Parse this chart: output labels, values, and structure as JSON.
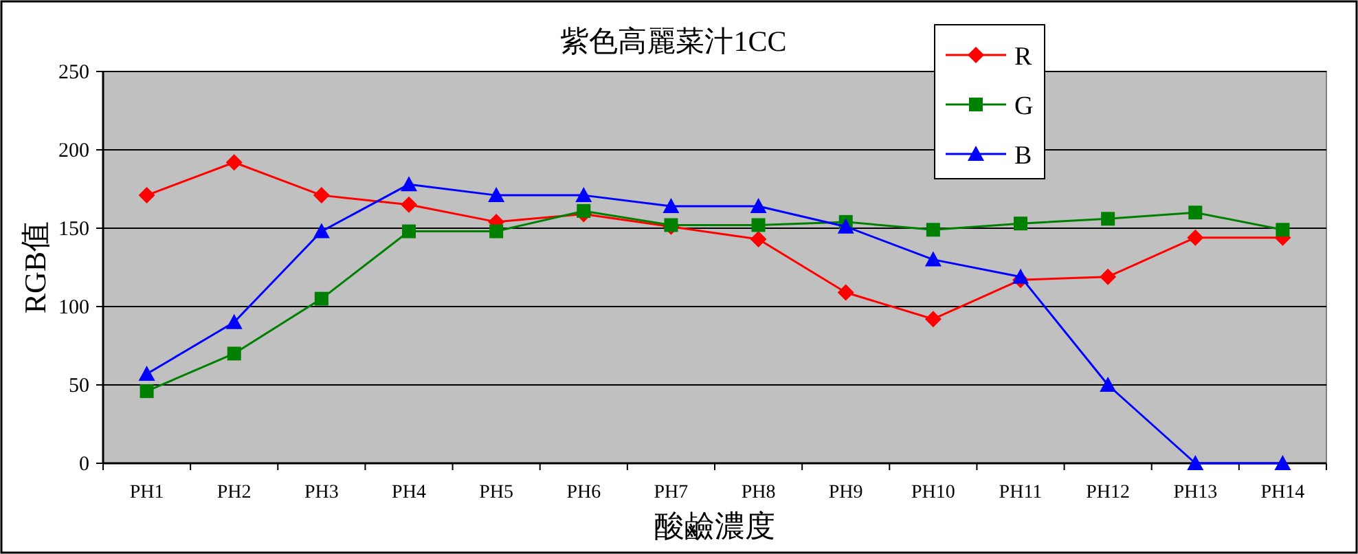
{
  "chart_data": {
    "type": "line",
    "title": "紫色高麗菜汁1CC",
    "xlabel": "酸鹼濃度",
    "ylabel": "RGB值",
    "categories": [
      "PH1",
      "PH2",
      "PH3",
      "PH4",
      "PH5",
      "PH6",
      "PH7",
      "PH8",
      "PH9",
      "PH10",
      "PH11",
      "PH12",
      "PH13",
      "PH14"
    ],
    "series": [
      {
        "name": "R",
        "color": "#ff0000",
        "marker": "diamond",
        "values": [
          171,
          192,
          171,
          165,
          154,
          159,
          151,
          143,
          109,
          92,
          117,
          119,
          144,
          144
        ]
      },
      {
        "name": "G",
        "color": "#008000",
        "marker": "square",
        "values": [
          46,
          70,
          105,
          148,
          148,
          161,
          152,
          152,
          154,
          149,
          153,
          156,
          160,
          149
        ]
      },
      {
        "name": "B",
        "color": "#0000ff",
        "marker": "triangle",
        "values": [
          57,
          90,
          148,
          178,
          171,
          171,
          164,
          164,
          151,
          130,
          119,
          50,
          0,
          0
        ]
      }
    ],
    "ylim": [
      0,
      250
    ],
    "yticks": [
      0,
      50,
      100,
      150,
      200,
      250
    ],
    "grid": "y",
    "legend": "top right"
  }
}
